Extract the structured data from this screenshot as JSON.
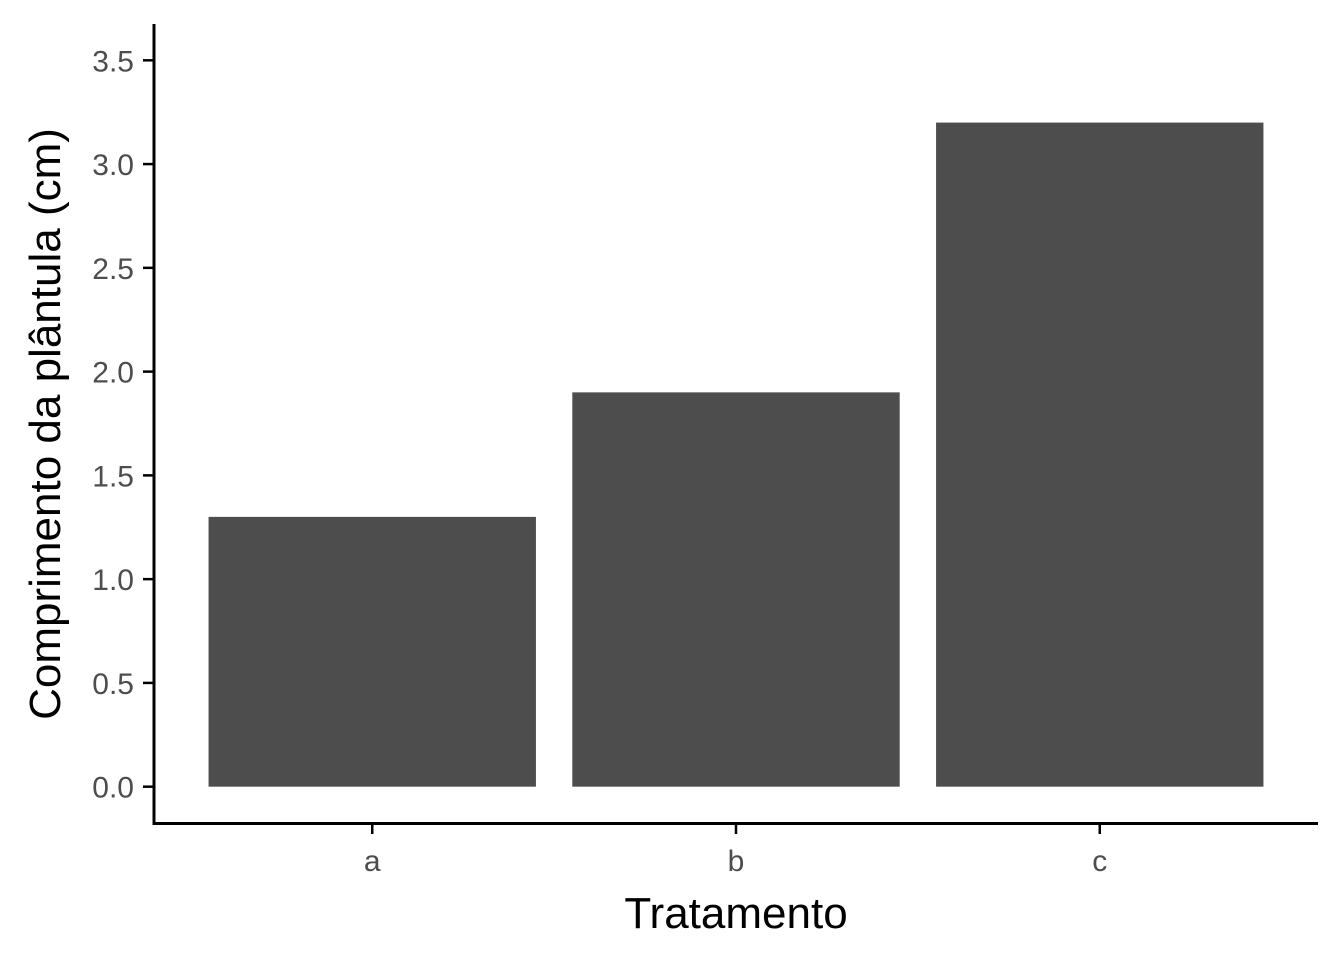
{
  "chart_data": {
    "type": "bar",
    "categories": [
      "a",
      "b",
      "c"
    ],
    "values": [
      1.3,
      1.9,
      3.2
    ],
    "xlabel": "Tratamento",
    "ylabel": "Comprimento da plântula (cm)",
    "ylim": [
      -0.175,
      3.675
    ],
    "yticks": [
      0.0,
      0.5,
      1.0,
      1.5,
      2.0,
      2.5,
      3.0,
      3.5
    ],
    "ytick_labels": [
      "0.0",
      "0.5",
      "1.0",
      "1.5",
      "2.0",
      "2.5",
      "3.0",
      "3.5"
    ],
    "bar_color": "#4d4d4d",
    "axis_color": "#000000",
    "tick_label_color": "#4d4d4d",
    "grid": false,
    "legend": "none"
  }
}
